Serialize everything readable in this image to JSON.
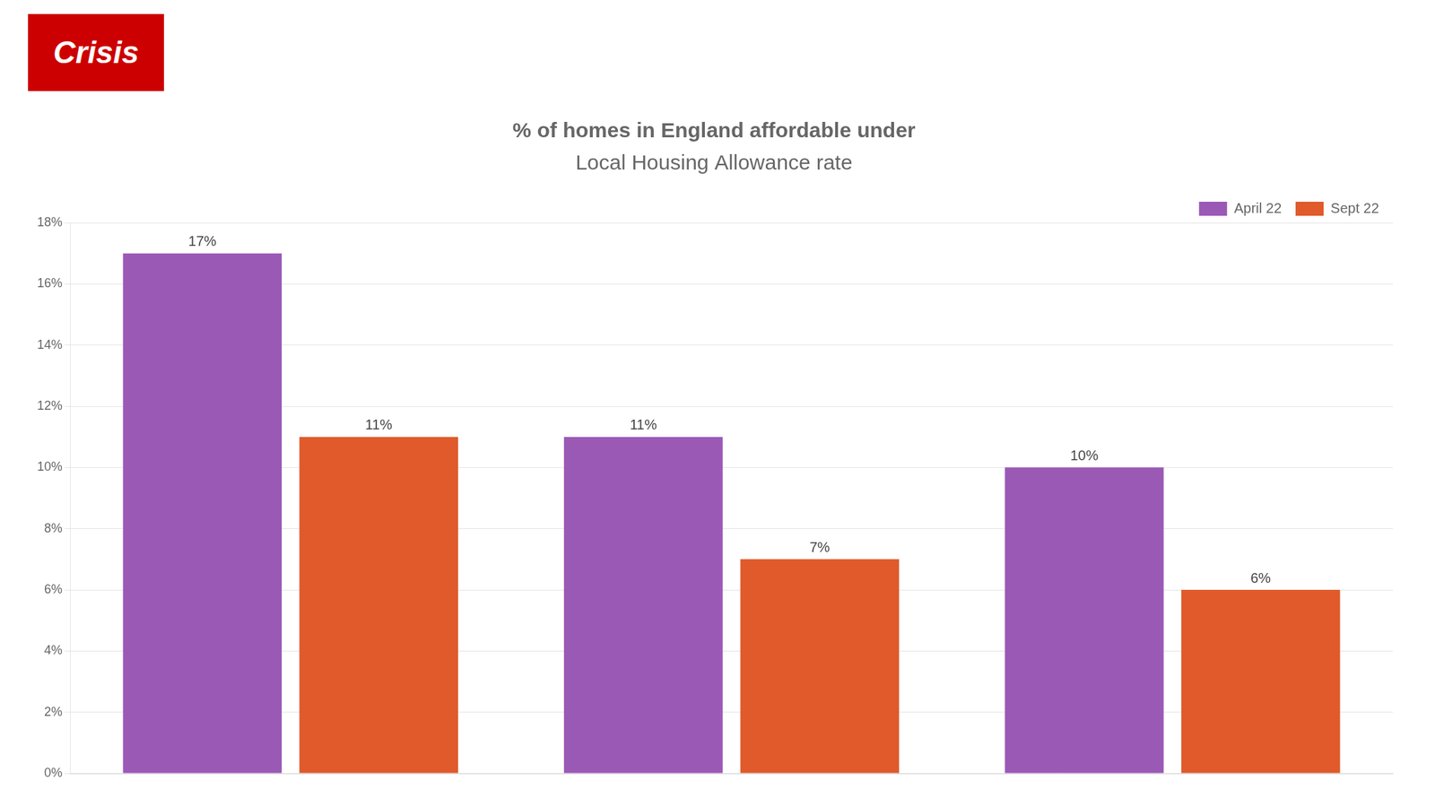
{
  "chart_data": {
    "type": "bar",
    "title": "% of homes in England affordable under",
    "subtitle": "Local Housing Allowance rate",
    "categories": [
      null,
      null,
      null
    ],
    "series": [
      {
        "name": "April 22",
        "color": "#9B59B6",
        "values": [
          17,
          11,
          10
        ],
        "value_labels": [
          "17%",
          "11%",
          "10%"
        ]
      },
      {
        "name": "Sept 22",
        "color": "#E05A2B",
        "values": [
          11,
          7,
          6
        ],
        "value_labels": [
          "11%",
          "7%",
          "6%"
        ]
      }
    ],
    "ylim": [
      0,
      18
    ],
    "yticks": [
      {
        "value": 0,
        "label": "0%"
      },
      {
        "value": 2,
        "label": "2%"
      },
      {
        "value": 4,
        "label": "4%"
      },
      {
        "value": 6,
        "label": "6%"
      },
      {
        "value": 8,
        "label": "8%"
      },
      {
        "value": 10,
        "label": "10%"
      },
      {
        "value": 12,
        "label": "12%"
      },
      {
        "value": 14,
        "label": "14%"
      },
      {
        "value": 16,
        "label": "16%"
      },
      {
        "value": 18,
        "label": "18%"
      }
    ],
    "grid": true,
    "legend": "upper right",
    "data_labels": true,
    "tick_labels": "y",
    "annotations": [
      "Crisis"
    ]
  }
}
